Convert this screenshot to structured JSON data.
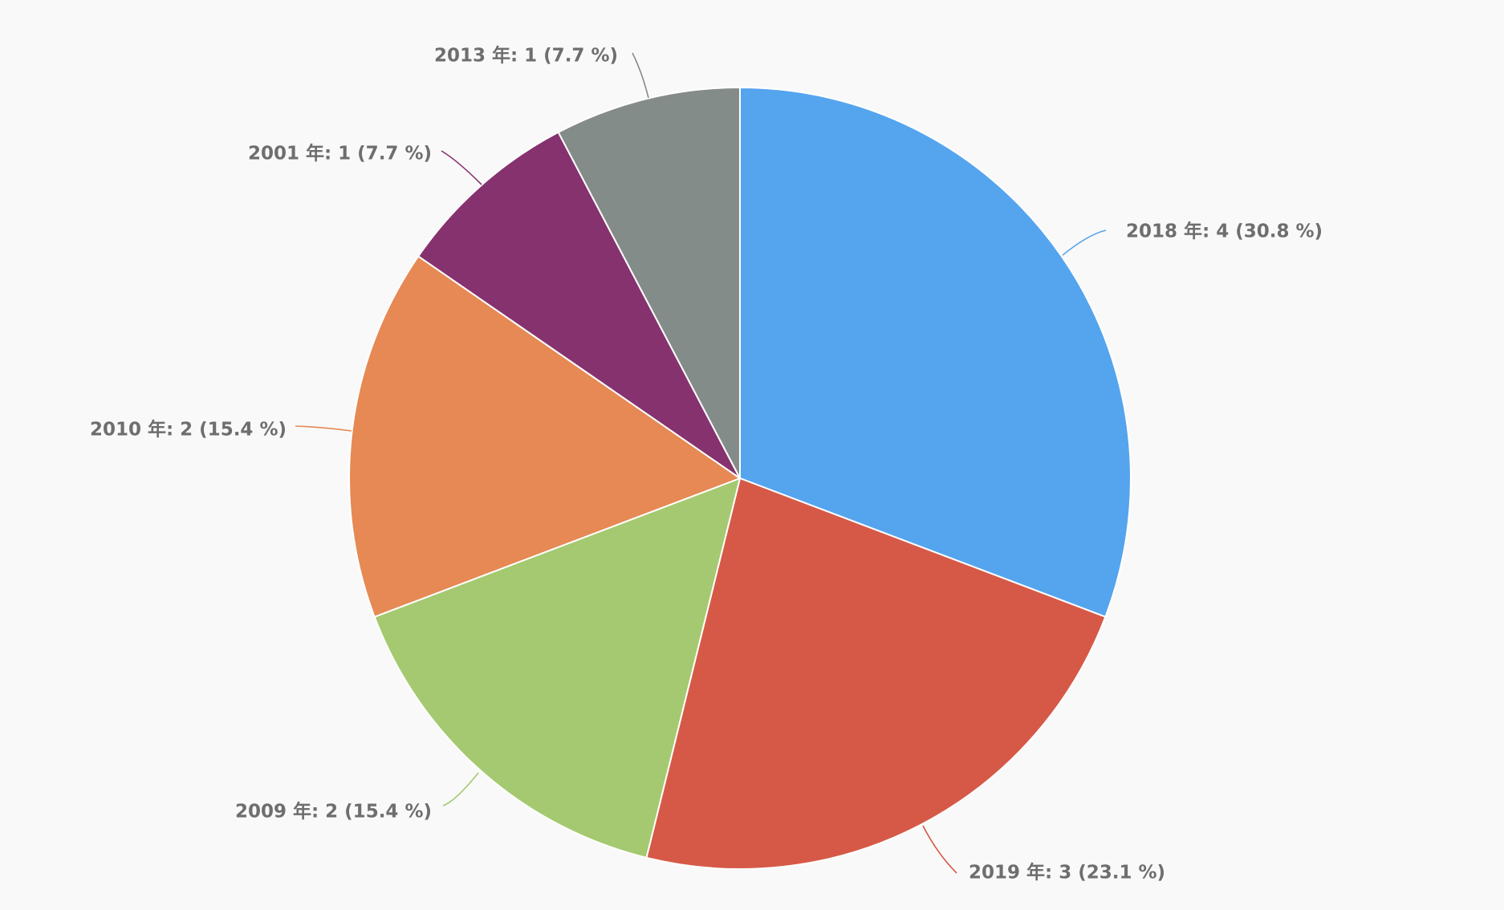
{
  "chart_data": {
    "type": "pie",
    "title": "",
    "slices": [
      {
        "label": "2018 年: 4 (30.8 %)",
        "category": "2018 年",
        "value": 4,
        "percent": 30.8,
        "color": "#55a4ee"
      },
      {
        "label": "2019 年: 3 (23.1 %)",
        "category": "2019 年",
        "value": 3,
        "percent": 23.1,
        "color": "#d65947"
      },
      {
        "label": "2009 年: 2 (15.4 %)",
        "category": "2009 年",
        "value": 2,
        "percent": 15.4,
        "color": "#a5c970"
      },
      {
        "label": "2010 年: 2 (15.4 %)",
        "category": "2010 年",
        "value": 2,
        "percent": 15.4,
        "color": "#e68954"
      },
      {
        "label": "2001 年: 1 (7.7 %)",
        "category": "2001 年",
        "value": 1,
        "percent": 7.7,
        "color": "#86326f"
      },
      {
        "label": "2013 年: 1 (7.7 %)",
        "category": "2013 年",
        "value": 1,
        "percent": 7.7,
        "color": "#848c89"
      }
    ],
    "start_angle": "12 o'clock",
    "direction": "clockwise",
    "legend": "none",
    "label_placement": "outside with leader lines",
    "colors": {
      "background": "#f9f9f9",
      "label_text": "#6e6e6e",
      "slice_border": "#ffffff"
    }
  }
}
